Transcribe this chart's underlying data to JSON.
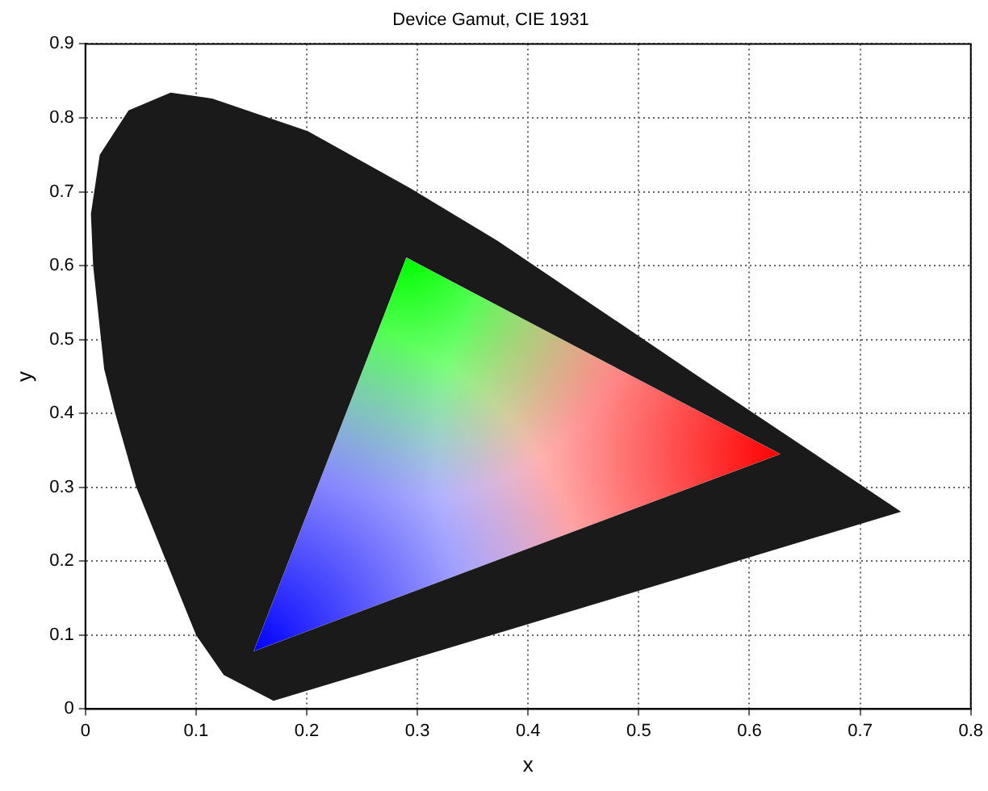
{
  "chart_data": {
    "type": "area",
    "title": "Device Gamut, CIE 1931",
    "xlabel": "x",
    "ylabel": "y",
    "xlim": [
      0,
      0.8
    ],
    "xticks": [
      0,
      0.1,
      0.2,
      0.3,
      0.4,
      0.5,
      0.6,
      0.7,
      0.8
    ],
    "ylim": [
      0,
      0.9
    ],
    "yticks": [
      0,
      0.1,
      0.2,
      0.3,
      0.4,
      0.5,
      0.6,
      0.7,
      0.8,
      0.9
    ],
    "grid": true,
    "legend": false,
    "series": [
      {
        "color": "#1a1a1a",
        "x": [
          0.17,
          0.125,
          0.1,
          0.073,
          0.046,
          0.027,
          0.017,
          0.007,
          0.005,
          0.013,
          0.039,
          0.077,
          0.115,
          0.201,
          0.292,
          0.372,
          0.554,
          0.737
        ],
        "values": [
          0.011,
          0.046,
          0.1,
          0.2,
          0.3,
          0.4,
          0.46,
          0.6,
          0.67,
          0.75,
          0.81,
          0.834,
          0.826,
          0.782,
          0.706,
          0.634,
          0.45,
          0.267
        ]
      },
      {
        "colors": [
          "#00ff00",
          "#ff0000",
          "#0000ff"
        ],
        "x": [
          0.29,
          0.628,
          0.152
        ],
        "values": [
          0.611,
          0.345,
          0.078
        ]
      }
    ]
  }
}
